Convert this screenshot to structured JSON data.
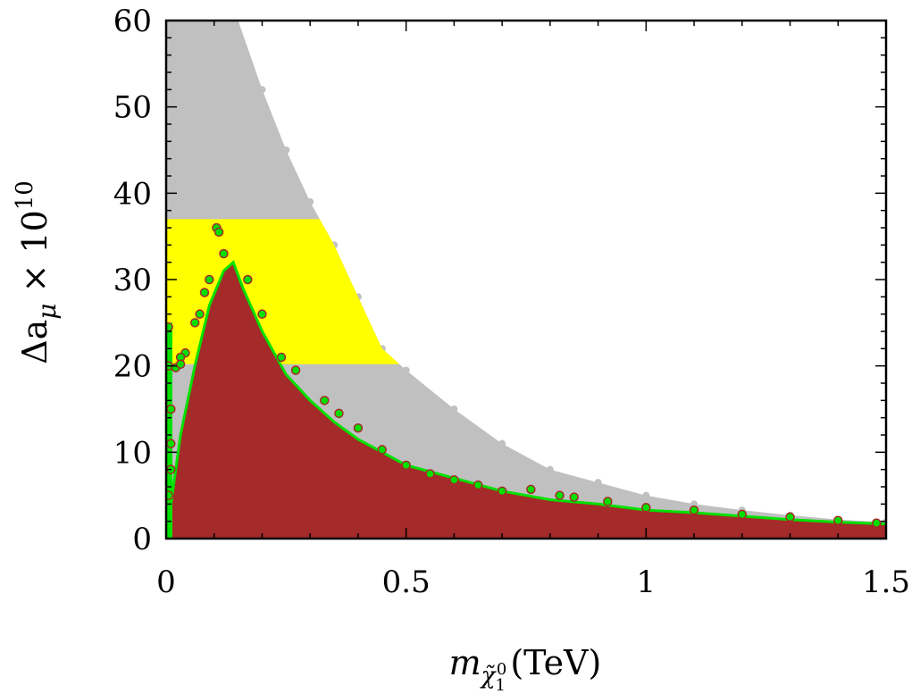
{
  "chart_data": {
    "type": "scatter",
    "title": "",
    "xlabel": {
      "symbol": "m",
      "subscript": "χ̃",
      "subsub": "1",
      "supsub": "0",
      "unit": "(TeV)"
    },
    "ylabel": {
      "main": "Δa",
      "subscript": "μ",
      "times": "× 10",
      "exponent": "10"
    },
    "xlim": [
      0,
      1.5
    ],
    "ylim": [
      0,
      60
    ],
    "x_ticks": [
      0,
      0.5,
      1,
      1.5
    ],
    "x_tick_labels": [
      "0",
      "0.5",
      "1",
      "1.5"
    ],
    "y_ticks": [
      0,
      10,
      20,
      30,
      40,
      50,
      60
    ],
    "y_tick_labels": [
      "0",
      "10",
      "20",
      "30",
      "40",
      "50",
      "60"
    ],
    "grid": false,
    "legend": "none",
    "bands": [
      {
        "name": "",
        "y_range": [
          20.2,
          37.0
        ],
        "color": "#ffff00"
      }
    ],
    "series": [
      {
        "color": "#c0c0c0",
        "upper_envelope": [
          [
            0.0,
            60
          ],
          [
            0.15,
            60
          ],
          [
            0.2,
            52
          ],
          [
            0.25,
            45
          ],
          [
            0.3,
            39
          ],
          [
            0.35,
            34
          ],
          [
            0.4,
            28
          ],
          [
            0.45,
            22
          ],
          [
            0.5,
            19.5
          ],
          [
            0.6,
            15
          ],
          [
            0.7,
            11
          ],
          [
            0.8,
            8
          ],
          [
            0.9,
            6.5
          ],
          [
            1.0,
            5
          ],
          [
            1.1,
            4
          ],
          [
            1.2,
            3.3
          ],
          [
            1.3,
            2.7
          ],
          [
            1.4,
            2.2
          ],
          [
            1.5,
            1.9
          ]
        ]
      },
      {
        "color": "#a52a2a",
        "upper_envelope": [
          [
            0.0,
            0
          ],
          [
            0.01,
            4
          ],
          [
            0.03,
            12
          ],
          [
            0.06,
            20
          ],
          [
            0.09,
            27
          ],
          [
            0.12,
            31
          ],
          [
            0.14,
            32
          ],
          [
            0.16,
            29
          ],
          [
            0.2,
            24
          ],
          [
            0.25,
            19
          ],
          [
            0.3,
            16
          ],
          [
            0.35,
            13.5
          ],
          [
            0.4,
            11.5
          ],
          [
            0.5,
            8.5
          ],
          [
            0.6,
            7
          ],
          [
            0.7,
            5.5
          ],
          [
            0.8,
            4.5
          ],
          [
            0.9,
            4
          ],
          [
            1.0,
            3.3
          ],
          [
            1.1,
            3
          ],
          [
            1.2,
            2.6
          ],
          [
            1.3,
            2.2
          ],
          [
            1.4,
            1.9
          ],
          [
            1.5,
            1.7
          ]
        ]
      },
      {
        "color": "#00e000",
        "points": [
          [
            0.105,
            36
          ],
          [
            0.11,
            35.5
          ],
          [
            0.12,
            33
          ],
          [
            0.09,
            30
          ],
          [
            0.08,
            28.5
          ],
          [
            0.07,
            26
          ],
          [
            0.06,
            25
          ],
          [
            0.04,
            21.5
          ],
          [
            0.03,
            21
          ],
          [
            0.005,
            24.5
          ],
          [
            0.005,
            20
          ],
          [
            0.02,
            19.8
          ],
          [
            0.03,
            20.2
          ],
          [
            0.01,
            15
          ],
          [
            0.01,
            11
          ],
          [
            0.01,
            8
          ],
          [
            0.005,
            5
          ],
          [
            0.17,
            30
          ],
          [
            0.2,
            26
          ],
          [
            0.24,
            21
          ],
          [
            0.27,
            19.5
          ],
          [
            0.33,
            16
          ],
          [
            0.36,
            14.5
          ],
          [
            0.4,
            12.8
          ],
          [
            0.45,
            10.3
          ],
          [
            0.5,
            8.5
          ],
          [
            0.55,
            7.5
          ],
          [
            0.6,
            6.8
          ],
          [
            0.65,
            6.2
          ],
          [
            0.7,
            5.5
          ],
          [
            0.76,
            5.7
          ],
          [
            0.82,
            5
          ],
          [
            0.85,
            4.8
          ],
          [
            0.92,
            4.3
          ],
          [
            1.0,
            3.6
          ],
          [
            1.1,
            3.3
          ],
          [
            1.2,
            2.8
          ],
          [
            1.3,
            2.5
          ],
          [
            1.4,
            2.1
          ],
          [
            1.48,
            1.8
          ]
        ]
      }
    ]
  }
}
